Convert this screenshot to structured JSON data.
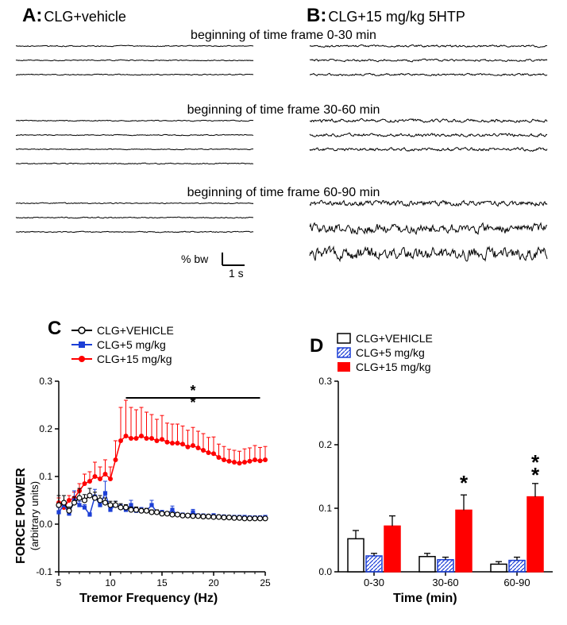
{
  "colors": {
    "bg": "#ffffff",
    "black": "#000000",
    "blue": "#1c3fd6",
    "red": "#ff0000"
  },
  "panelA": {
    "label": "A:",
    "condition": "CLG+vehicle"
  },
  "panelB": {
    "label": "B:",
    "condition": "CLG+15 mg/kg 5HTP"
  },
  "timeframes": [
    "beginning of time frame 0-30 min",
    "beginning of time frame 30-60 min",
    "beginning of time frame 60-90 min"
  ],
  "traces": {
    "description": "signal traces per condition per timeframe",
    "rows_per_group": 3,
    "groups": [
      {
        "timeframe": 0,
        "A_amplitude": 1,
        "B_amplitude": 2
      },
      {
        "timeframe": 1,
        "A_amplitude": 1,
        "B_amplitude": 3,
        "A_rows": 4
      },
      {
        "timeframe": 2,
        "A_amplitude": 1,
        "B_amplitude": [
          5,
          9,
          12
        ]
      }
    ]
  },
  "scalebar": {
    "y_label": "% bw",
    "x_label": "1 s"
  },
  "panelC": {
    "label": "C",
    "y_axis_label": "FORCE POWER",
    "y_axis_sublabel": "(arbitrary units)",
    "x_axis_label": "Tremor Frequency (Hz)",
    "y_lim": [
      -0.1,
      0.3
    ],
    "y_ticks": [
      -0.1,
      0.0,
      0.1,
      0.2,
      0.3
    ],
    "x_lim": [
      5,
      25
    ],
    "x_ticks": [
      5,
      10,
      15,
      20,
      25
    ],
    "legend": [
      {
        "label": "CLG+VEHICLE",
        "color": "#000000",
        "marker": "open-circle"
      },
      {
        "label": "CLG+5 mg/kg",
        "color": "#1c3fd6",
        "marker": "filled-square"
      },
      {
        "label": "CLG+15 mg/kg",
        "color": "#ff0000",
        "marker": "filled-circle"
      }
    ],
    "sig_bar": {
      "x_start": 11.5,
      "x_end": 24.5,
      "y": 0.265,
      "marks": "**"
    },
    "series": {
      "vehicle": {
        "x": [
          5,
          5.5,
          6,
          6.5,
          7,
          7.5,
          8,
          8.5,
          9,
          9.5,
          10,
          10.5,
          11,
          11.5,
          12,
          12.5,
          13,
          13.5,
          14,
          14.5,
          15,
          15.5,
          16,
          16.5,
          17,
          17.5,
          18,
          18.5,
          19,
          19.5,
          20,
          20.5,
          21,
          21.5,
          22,
          22.5,
          23,
          23.5,
          24,
          24.5,
          25
        ],
        "y": [
          0.04,
          0.045,
          0.028,
          0.045,
          0.055,
          0.05,
          0.06,
          0.055,
          0.05,
          0.045,
          0.04,
          0.04,
          0.035,
          0.035,
          0.03,
          0.03,
          0.028,
          0.028,
          0.025,
          0.025,
          0.022,
          0.022,
          0.02,
          0.02,
          0.018,
          0.018,
          0.017,
          0.017,
          0.016,
          0.016,
          0.015,
          0.015,
          0.014,
          0.014,
          0.013,
          0.013,
          0.012,
          0.012,
          0.012,
          0.012,
          0.012
        ],
        "err": [
          0.02,
          0.015,
          0.008,
          0.012,
          0.02,
          0.012,
          0.015,
          0.012,
          0.01,
          0.01,
          0.008,
          0.008,
          0.008,
          0.006,
          0.006,
          0.006,
          0.005,
          0.005,
          0.005,
          0.005,
          0.004,
          0.004,
          0.004,
          0.004,
          0.003,
          0.003,
          0.003,
          0.003,
          0.003,
          0.003,
          0.003,
          0.003,
          0.003,
          0.003,
          0.003,
          0.003,
          0.003,
          0.003,
          0.003,
          0.003,
          0.003
        ]
      },
      "five": {
        "x": [
          5,
          5.5,
          6,
          6.5,
          7,
          7.5,
          8,
          8.5,
          9,
          9.5,
          10,
          10.5,
          11,
          11.5,
          12,
          12.5,
          13,
          13.5,
          14,
          14.5,
          15,
          15.5,
          16,
          16.5,
          17,
          17.5,
          18,
          18.5,
          19,
          19.5,
          20,
          20.5,
          21,
          21.5,
          22,
          22.5,
          23,
          23.5,
          24,
          24.5,
          25
        ],
        "y": [
          0.025,
          0.04,
          0.022,
          0.05,
          0.04,
          0.035,
          0.02,
          0.058,
          0.04,
          0.065,
          0.03,
          0.04,
          0.035,
          0.03,
          0.04,
          0.028,
          0.03,
          0.028,
          0.04,
          0.025,
          0.025,
          0.022,
          0.03,
          0.02,
          0.02,
          0.018,
          0.025,
          0.018,
          0.018,
          0.017,
          0.018,
          0.016,
          0.016,
          0.015,
          0.015,
          0.015,
          0.015,
          0.014,
          0.014,
          0.014,
          0.015
        ],
        "err": [
          0.01,
          0.008,
          0.006,
          0.02,
          0.008,
          0.006,
          0.004,
          0.015,
          0.01,
          0.025,
          0.005,
          0.008,
          0.006,
          0.005,
          0.01,
          0.005,
          0.005,
          0.005,
          0.01,
          0.004,
          0.004,
          0.004,
          0.008,
          0.004,
          0.003,
          0.003,
          0.006,
          0.003,
          0.003,
          0.003,
          0.004,
          0.003,
          0.003,
          0.003,
          0.003,
          0.003,
          0.003,
          0.003,
          0.003,
          0.003,
          0.003
        ]
      },
      "fifteen": {
        "x": [
          5,
          5.5,
          6,
          6.5,
          7,
          7.5,
          8,
          8.5,
          9,
          9.5,
          10,
          10.5,
          11,
          11.5,
          12,
          12.5,
          13,
          13.5,
          14,
          14.5,
          15,
          15.5,
          16,
          16.5,
          17,
          17.5,
          18,
          18.5,
          19,
          19.5,
          20,
          20.5,
          21,
          21.5,
          22,
          22.5,
          23,
          23.5,
          24,
          24.5,
          25
        ],
        "y": [
          0.045,
          0.035,
          0.05,
          0.055,
          0.07,
          0.085,
          0.09,
          0.1,
          0.095,
          0.105,
          0.095,
          0.135,
          0.175,
          0.185,
          0.18,
          0.18,
          0.185,
          0.18,
          0.18,
          0.175,
          0.178,
          0.172,
          0.17,
          0.17,
          0.168,
          0.162,
          0.165,
          0.16,
          0.155,
          0.15,
          0.148,
          0.14,
          0.135,
          0.132,
          0.13,
          0.128,
          0.13,
          0.132,
          0.135,
          0.133,
          0.135
        ],
        "err": [
          0.01,
          0.008,
          0.01,
          0.012,
          0.015,
          0.02,
          0.02,
          0.03,
          0.025,
          0.03,
          0.025,
          0.04,
          0.07,
          0.075,
          0.065,
          0.06,
          0.06,
          0.055,
          0.05,
          0.045,
          0.05,
          0.04,
          0.04,
          0.04,
          0.038,
          0.035,
          0.038,
          0.035,
          0.035,
          0.032,
          0.035,
          0.028,
          0.028,
          0.025,
          0.025,
          0.025,
          0.028,
          0.028,
          0.03,
          0.028,
          0.028
        ]
      }
    }
  },
  "panelD": {
    "label": "D",
    "x_axis_label": "Time (min)",
    "y_lim": [
      0.0,
      0.3
    ],
    "y_ticks": [
      0.0,
      0.1,
      0.2,
      0.3
    ],
    "x_groups": [
      "0-30",
      "30-60",
      "60-90"
    ],
    "legend": [
      {
        "label": "CLG+VEHICLE",
        "fill": "#ffffff",
        "stroke": "#000000",
        "pattern": "none"
      },
      {
        "label": "CLG+5 mg/kg",
        "fill": "#ffffff",
        "stroke": "#1c3fd6",
        "pattern": "hatch-blue"
      },
      {
        "label": "CLG+15 mg/kg",
        "fill": "#ff0000",
        "stroke": "#ff0000",
        "pattern": "none"
      }
    ],
    "bars": {
      "vehicle": {
        "y": [
          0.052,
          0.024,
          0.012
        ],
        "err": [
          0.013,
          0.005,
          0.004
        ]
      },
      "five": {
        "y": [
          0.025,
          0.019,
          0.018
        ],
        "err": [
          0.004,
          0.004,
          0.005
        ]
      },
      "fifteen": {
        "y": [
          0.072,
          0.097,
          0.118
        ],
        "err": [
          0.016,
          0.024,
          0.021
        ]
      }
    },
    "sig": [
      {
        "group": 1,
        "bar": "fifteen",
        "mark": "*"
      },
      {
        "group": 2,
        "bar": "fifteen",
        "mark": "**"
      }
    ]
  }
}
